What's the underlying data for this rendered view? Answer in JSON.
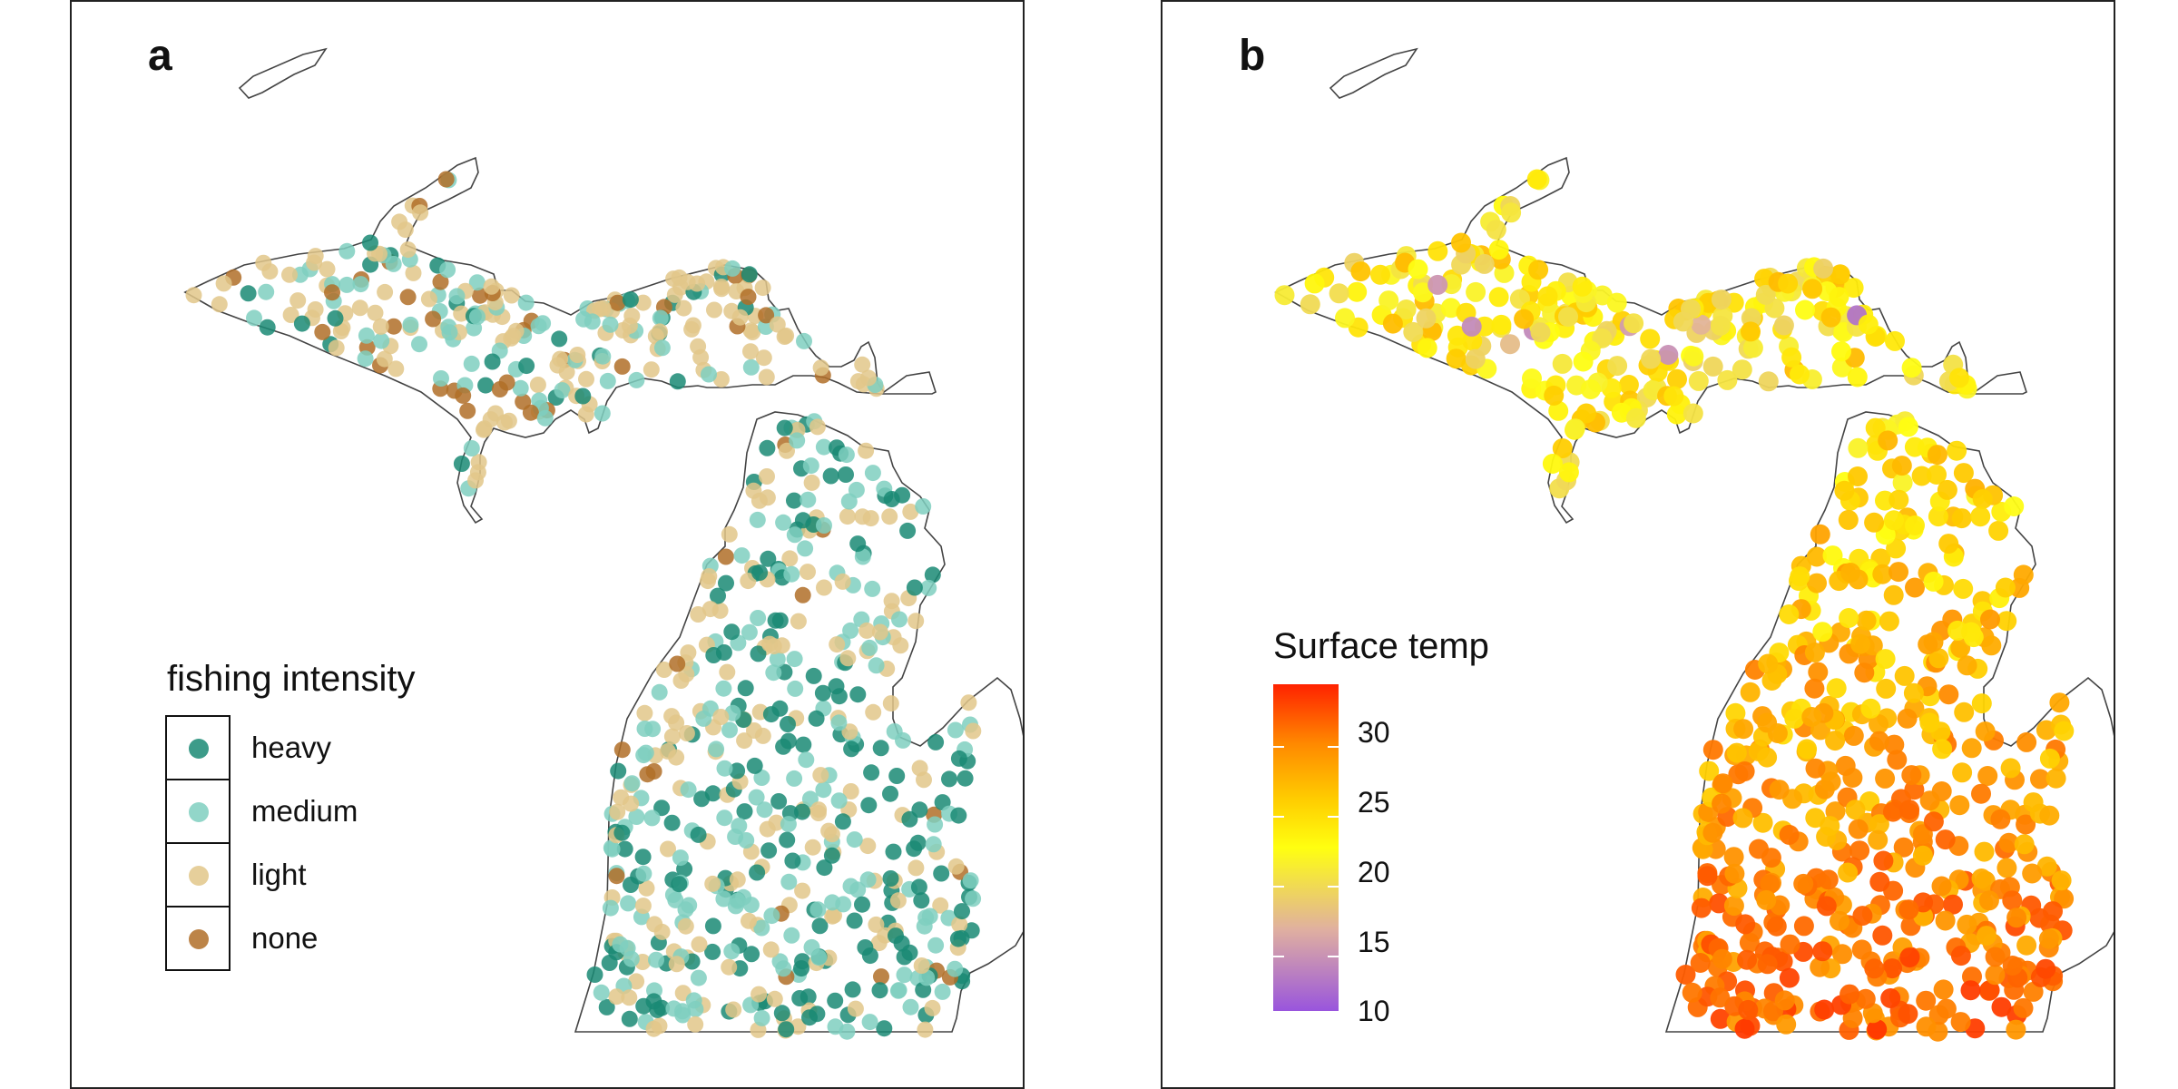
{
  "panel_a": {
    "label": "a",
    "legend_title": "fishing intensity",
    "categories": [
      {
        "label": "heavy",
        "color": "#1a8a74"
      },
      {
        "label": "medium",
        "color": "#7fcfc0"
      },
      {
        "label": "light",
        "color": "#e2c78a"
      },
      {
        "label": "none",
        "color": "#b06e28"
      }
    ]
  },
  "panel_b": {
    "label": "b",
    "legend_title": "Surface temp",
    "colorbar_range": [
      10,
      33
    ],
    "ticks": [
      {
        "label": "10",
        "value": 10
      },
      {
        "label": "15",
        "value": 15
      },
      {
        "label": "20",
        "value": 20
      },
      {
        "label": "25",
        "value": 25
      },
      {
        "label": "30",
        "value": 30
      }
    ]
  }
}
